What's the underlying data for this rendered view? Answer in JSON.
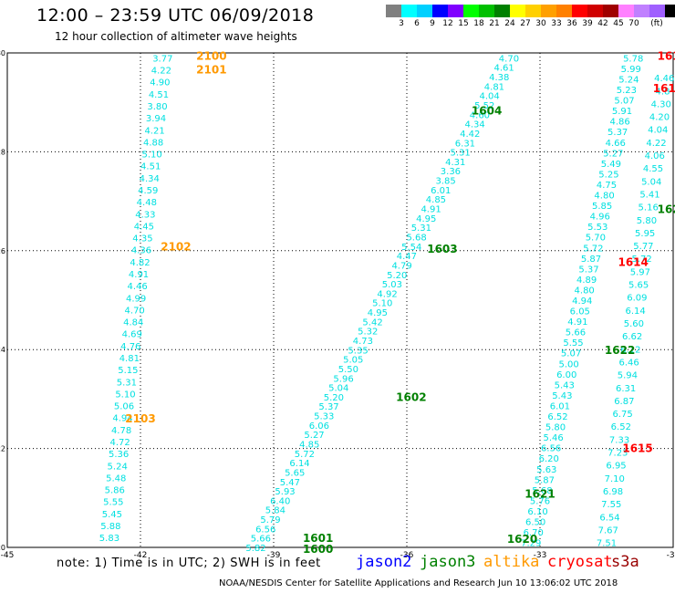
{
  "header": {
    "title": "12:00 – 23:59 UTC 06/09/2018",
    "subtitle": "12 hour collection of altimeter wave heights"
  },
  "colorbar": {
    "colors": [
      "#808080",
      "#00ffff",
      "#00d0ff",
      "#0000ff",
      "#8000ff",
      "#00ff00",
      "#00c000",
      "#008000",
      "#ffff00",
      "#ffd000",
      "#ffa000",
      "#ff8000",
      "#ff0000",
      "#d00000",
      "#a00000",
      "#ff80ff",
      "#c080ff",
      "#a060ff",
      "#000000"
    ],
    "labels": [
      "3",
      "6",
      "9",
      "12",
      "15",
      "18",
      "21",
      "24",
      "27",
      "30",
      "33",
      "36",
      "39",
      "42",
      "45",
      "70",
      "(ft)"
    ]
  },
  "map": {
    "x_ticks": [
      "-45",
      "-42",
      "-39",
      "-36",
      "-33",
      "-30"
    ],
    "y_ticks": [
      "20",
      "22",
      "24",
      "26",
      "28",
      "30"
    ],
    "lon_range": [
      -45,
      -30
    ],
    "lat_range": [
      20,
      30
    ],
    "swh_color": "#00e0e0",
    "pass_colors": {
      "jason3": "#008000",
      "altika": "#ff9900",
      "cryosat": "#ff0000"
    },
    "tracks": [
      {
        "x0": -42.7,
        "x1": -41.5,
        "y0": 20.2,
        "y1": 29.9,
        "values": [
          "5.83",
          "5.88",
          "5.45",
          "5.55",
          "5.86",
          "5.48",
          "5.24",
          "5.36",
          "4.72",
          "4.78",
          "4.94",
          "5.06",
          "5.10",
          "5.31",
          "5.15",
          "4.81",
          "4.76",
          "4.69",
          "4.84",
          "4.70",
          "4.99",
          "4.46",
          "4.91",
          "4.82",
          "4.36",
          "4.35",
          "4.45",
          "4.33",
          "4.48",
          "4.59",
          "4.34",
          "4.51",
          "5.10",
          "4.88",
          "4.21",
          "3.94",
          "3.80",
          "4.51",
          "4.90",
          "4.22",
          "3.77"
        ]
      },
      {
        "x0": -39.4,
        "x1": -33.7,
        "y0": 20.0,
        "y1": 29.9,
        "values": [
          "5.82",
          "5.66",
          "6.56",
          "5.79",
          "5.84",
          "6.40",
          "5.93",
          "5.47",
          "5.65",
          "6.14",
          "5.72",
          "4.85",
          "5.27",
          "6.06",
          "5.33",
          "5.37",
          "5.20",
          "5.04",
          "5.96",
          "5.50",
          "5.05",
          "5.35",
          "4.73",
          "5.32",
          "5.42",
          "4.95",
          "5.10",
          "4.92",
          "5.03",
          "5.20",
          "4.79",
          "4.47",
          "5.54",
          "5.68",
          "5.31",
          "4.95",
          "4.91",
          "4.85",
          "6.01",
          "3.85",
          "3.36",
          "4.31",
          "5.31",
          "6.31",
          "4.42",
          "4.34",
          "4.60",
          "5.52",
          "4.04",
          "4.81",
          "4.38",
          "4.61",
          "4.70"
        ]
      },
      {
        "x0": -33.2,
        "x1": -30.9,
        "y0": 20.1,
        "y1": 29.9,
        "values": [
          "7.29",
          "6.70",
          "6.50",
          "6.10",
          "5.76",
          "5.68",
          "5.87",
          "5.63",
          "6.20",
          "6.56",
          "5.46",
          "5.80",
          "6.52",
          "6.01",
          "5.43",
          "5.43",
          "6.00",
          "5.00",
          "5.07",
          "5.55",
          "5.66",
          "4.91",
          "6.05",
          "4.94",
          "4.80",
          "4.89",
          "5.37",
          "5.87",
          "5.72",
          "5.70",
          "5.53",
          "4.96",
          "5.85",
          "4.80",
          "4.75",
          "5.25",
          "5.49",
          "5.27",
          "4.66",
          "5.37",
          "4.86",
          "5.91",
          "5.07",
          "5.23",
          "5.24",
          "5.99",
          "5.78"
        ]
      },
      {
        "x0": -31.5,
        "x1": -30.2,
        "y0": 20.1,
        "y1": 29.5,
        "values": [
          "7.51",
          "7.67",
          "6.54",
          "7.55",
          "6.98",
          "7.10",
          "6.95",
          "7.23",
          "7.33",
          "6.52",
          "6.75",
          "6.87",
          "6.31",
          "5.94",
          "6.46",
          "6.12",
          "6.62",
          "5.60",
          "6.14",
          "6.09",
          "5.65",
          "5.97",
          "5.72",
          "5.77",
          "5.95",
          "5.80",
          "5.16",
          "5.41",
          "5.04",
          "4.55",
          "4.06",
          "4.22",
          "4.04",
          "4.20",
          "4.30",
          "4.8",
          "4.46"
        ]
      }
    ],
    "pass_labels": [
      {
        "text": "2100",
        "sat": "altika",
        "lon": -40.4,
        "lat": 29.95
      },
      {
        "text": "2101",
        "sat": "altika",
        "lon": -40.4,
        "lat": 29.68
      },
      {
        "text": "2102",
        "sat": "altika",
        "lon": -41.2,
        "lat": 26.1
      },
      {
        "text": "2103",
        "sat": "altika",
        "lon": -42.0,
        "lat": 22.62
      },
      {
        "text": "1604",
        "sat": "jason3",
        "lon": -34.2,
        "lat": 28.85
      },
      {
        "text": "1603",
        "sat": "jason3",
        "lon": -35.2,
        "lat": 26.05
      },
      {
        "text": "1602",
        "sat": "jason3",
        "lon": -35.9,
        "lat": 23.05
      },
      {
        "text": "1601",
        "sat": "jason3",
        "lon": -38.0,
        "lat": 20.2
      },
      {
        "text": "1600",
        "sat": "jason3",
        "lon": -38.0,
        "lat": 19.98
      },
      {
        "text": "1621",
        "sat": "jason3",
        "lon": -33.0,
        "lat": 21.1
      },
      {
        "text": "1620",
        "sat": "jason3",
        "lon": -33.4,
        "lat": 20.18
      },
      {
        "text": "1622",
        "sat": "jason3",
        "lon": -31.2,
        "lat": 24.0
      },
      {
        "text": "162",
        "sat": "jason3",
        "lon": -30.1,
        "lat": 26.85
      },
      {
        "text": "1614",
        "sat": "cryosat",
        "lon": -30.9,
        "lat": 25.78
      },
      {
        "text": "1615",
        "sat": "cryosat",
        "lon": -30.8,
        "lat": 22.02
      },
      {
        "text": "161",
        "sat": "cryosat",
        "lon": -30.1,
        "lat": 29.95
      },
      {
        "text": "161",
        "sat": "cryosat",
        "lon": -30.2,
        "lat": 29.3
      }
    ]
  },
  "footer": {
    "note": "note:  1) Time is in UTC;  2) SWH is in feet",
    "legend": [
      {
        "label": "jason2",
        "color": "#0000ff"
      },
      {
        "label": "jason3",
        "color": "#008000"
      },
      {
        "label": "altika",
        "color": "#ff9900"
      },
      {
        "label": "cryosat",
        "color": "#ff0000"
      },
      {
        "label": "s3a",
        "color": "#990000"
      }
    ],
    "credit": "NOAA/NESDIS Center for Satellite Applications and Research   Jun 10 13:06:02 UTC 2018"
  }
}
